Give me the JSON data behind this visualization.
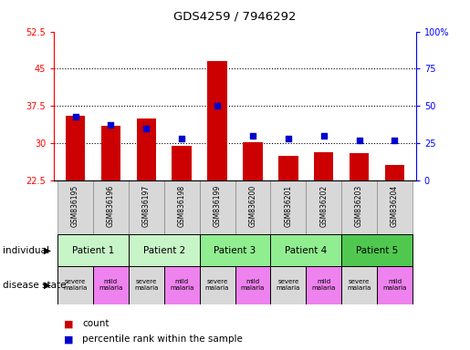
{
  "title": "GDS4259 / 7946292",
  "samples": [
    "GSM836195",
    "GSM836196",
    "GSM836197",
    "GSM836198",
    "GSM836199",
    "GSM836200",
    "GSM836201",
    "GSM836202",
    "GSM836203",
    "GSM836204"
  ],
  "bar_heights": [
    35.5,
    33.5,
    35.0,
    29.5,
    46.5,
    30.2,
    27.5,
    28.2,
    28.0,
    25.5
  ],
  "percentile_ranks": [
    43,
    37,
    35,
    28,
    50,
    30,
    28,
    30,
    27,
    27
  ],
  "ylim_left": [
    22.5,
    52.5
  ],
  "ylim_right": [
    0,
    100
  ],
  "yticks_left": [
    22.5,
    30,
    37.5,
    45,
    52.5
  ],
  "yticks_right": [
    0,
    25,
    50,
    75,
    100
  ],
  "ytick_labels_left": [
    "22.5",
    "30",
    "37.5",
    "45",
    "52.5"
  ],
  "ytick_labels_right": [
    "0",
    "25",
    "50",
    "75",
    "100%"
  ],
  "patients": [
    {
      "label": "Patient 1",
      "start": 0,
      "end": 2,
      "color": "#c8f5c8"
    },
    {
      "label": "Patient 2",
      "start": 2,
      "end": 4,
      "color": "#c8f5c8"
    },
    {
      "label": "Patient 3",
      "start": 4,
      "end": 6,
      "color": "#90ee90"
    },
    {
      "label": "Patient 4",
      "start": 6,
      "end": 8,
      "color": "#90ee90"
    },
    {
      "label": "Patient 5",
      "start": 8,
      "end": 10,
      "color": "#50c850"
    }
  ],
  "disease_states": [
    {
      "label": "severe\nmalaria",
      "sample_idx": 0,
      "color": "#d8d8d8"
    },
    {
      "label": "mild\nmalaria",
      "sample_idx": 1,
      "color": "#ee82ee"
    },
    {
      "label": "severe\nmalaria",
      "sample_idx": 2,
      "color": "#d8d8d8"
    },
    {
      "label": "mild\nmalaria",
      "sample_idx": 3,
      "color": "#ee82ee"
    },
    {
      "label": "severe\nmalaria",
      "sample_idx": 4,
      "color": "#d8d8d8"
    },
    {
      "label": "mild\nmalaria",
      "sample_idx": 5,
      "color": "#ee82ee"
    },
    {
      "label": "severe\nmalaria",
      "sample_idx": 6,
      "color": "#d8d8d8"
    },
    {
      "label": "mild\nmalaria",
      "sample_idx": 7,
      "color": "#ee82ee"
    },
    {
      "label": "severe\nmalaria",
      "sample_idx": 8,
      "color": "#d8d8d8"
    },
    {
      "label": "mild\nmalaria",
      "sample_idx": 9,
      "color": "#ee82ee"
    }
  ],
  "bar_color": "#cc0000",
  "square_color": "#0000cc",
  "bar_width": 0.55,
  "annotation_individual": "individual",
  "annotation_disease": "disease state",
  "legend_count": "count",
  "legend_percentile": "percentile rank within the sample",
  "background_color": "#ffffff"
}
